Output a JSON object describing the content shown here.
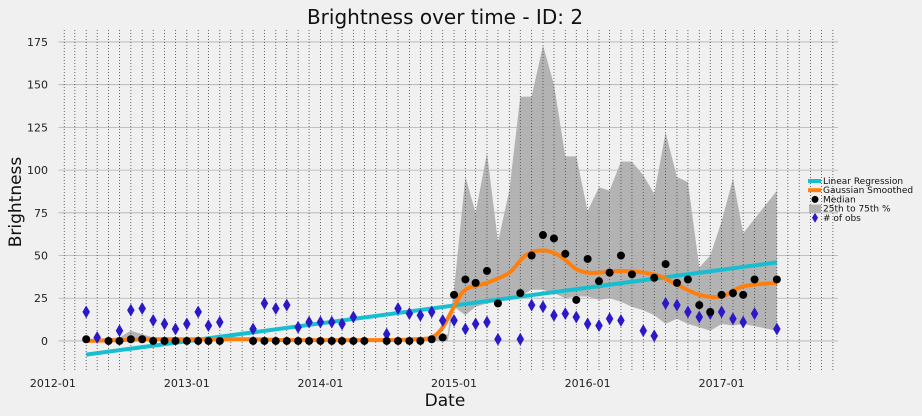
{
  "chart_data": {
    "type": "line",
    "title": "Brightness over time - ID: 2",
    "xlabel": "Date",
    "ylabel": "Brightness",
    "ylim": [
      -17,
      182
    ],
    "xlim": [
      "2012-01-15",
      "2017-11-15"
    ],
    "yticks": [
      0,
      25,
      50,
      75,
      100,
      125,
      150,
      175
    ],
    "xticks": [
      {
        "date": "2012-01-01",
        "label": "2012-01"
      },
      {
        "date": "2013-01-01",
        "label": "2013-01"
      },
      {
        "date": "2014-01-01",
        "label": "2014-01"
      },
      {
        "date": "2015-01-01",
        "label": "2015-01"
      },
      {
        "date": "2016-01-01",
        "label": "2016-01"
      },
      {
        "date": "2017-01-01",
        "label": "2017-01"
      }
    ],
    "grid": true,
    "legend": {
      "position": "right",
      "entries": [
        {
          "label": "Linear Regression",
          "kind": "line",
          "color": "#17becf"
        },
        {
          "label": "Gaussian Smoothed",
          "kind": "line",
          "color": "#ff7f0e"
        },
        {
          "label": "Median",
          "kind": "point",
          "color": "#000000"
        },
        {
          "label": "25th to 75th %",
          "kind": "band",
          "color": "#b3b3b3"
        },
        {
          "label": "# of obs",
          "kind": "diamond",
          "color": "#2a18c9"
        }
      ]
    },
    "colors": {
      "regression": "#17becf",
      "smoothed": "#ff7f0e",
      "median": "#000000",
      "band": "#b3b3b3",
      "obs": "#2a18c9",
      "background": "#f0f0f0",
      "grid": "#b0b0b0"
    },
    "linear_regression": {
      "x": [
        "2012-04-01",
        "2017-06-01"
      ],
      "y": [
        -8,
        46
      ]
    },
    "gaussian_smoothed": {
      "x": [
        "2012-04-01",
        "2012-07-01",
        "2012-10-01",
        "2013-01-01",
        "2013-04-01",
        "2013-07-01",
        "2013-10-01",
        "2014-01-01",
        "2014-04-01",
        "2014-07-01",
        "2014-09-15",
        "2014-11-01",
        "2014-12-01",
        "2015-01-01",
        "2015-02-01",
        "2015-04-01",
        "2015-06-01",
        "2015-07-15",
        "2015-09-01",
        "2015-10-15",
        "2015-12-01",
        "2016-01-01",
        "2016-02-01",
        "2016-04-01",
        "2016-06-01",
        "2016-07-15",
        "2016-09-01",
        "2016-11-01",
        "2017-01-01",
        "2017-03-01",
        "2017-06-01"
      ],
      "y": [
        0,
        0.5,
        1,
        1,
        1,
        1,
        0.5,
        0.5,
        0.5,
        0.5,
        1,
        2,
        8,
        20,
        30,
        34,
        40,
        50,
        53,
        50,
        42,
        40,
        40,
        41,
        40,
        38,
        33,
        27,
        26,
        32,
        34
      ]
    },
    "band": {
      "x": [
        "2012-04-01",
        "2012-07-01",
        "2012-08-01",
        "2012-10-01",
        "2013-01-01",
        "2013-06-01",
        "2014-01-01",
        "2014-06-01",
        "2014-09-01",
        "2014-11-01",
        "2014-12-15",
        "2015-01-01",
        "2015-02-01",
        "2015-03-01",
        "2015-04-01",
        "2015-05-01",
        "2015-06-01",
        "2015-07-01",
        "2015-08-01",
        "2015-09-01",
        "2015-10-01",
        "2015-11-01",
        "2015-12-01",
        "2016-01-01",
        "2016-02-01",
        "2016-03-01",
        "2016-04-01",
        "2016-05-01",
        "2016-06-01",
        "2016-07-01",
        "2016-08-01",
        "2016-09-01",
        "2016-10-01",
        "2016-11-01",
        "2016-12-01",
        "2017-01-01",
        "2017-02-01",
        "2017-03-01",
        "2017-06-01"
      ],
      "upper": [
        1,
        2,
        6,
        2,
        1,
        1,
        1,
        1,
        1,
        2,
        4,
        30,
        96,
        75,
        110,
        58,
        88,
        143,
        143,
        173,
        150,
        108,
        108,
        76,
        90,
        88,
        105,
        105,
        97,
        86,
        122,
        96,
        93,
        43,
        50,
        70,
        95,
        63,
        88
      ],
      "lower": [
        0,
        0,
        0,
        0,
        0,
        0,
        0,
        0,
        0,
        0,
        0,
        20,
        15,
        20,
        22,
        23,
        26,
        26,
        30,
        30,
        28,
        25,
        26,
        26,
        24,
        25,
        23,
        20,
        18,
        15,
        10,
        13,
        10,
        8,
        6,
        10,
        9,
        10,
        6
      ]
    },
    "median": {
      "x": [
        "2012-04-01",
        "2012-06-01",
        "2012-07-01",
        "2012-08-01",
        "2012-09-01",
        "2012-10-01",
        "2012-11-01",
        "2012-12-01",
        "2013-01-01",
        "2013-02-01",
        "2013-03-01",
        "2013-04-01",
        "2013-07-01",
        "2013-08-01",
        "2013-09-01",
        "2013-10-01",
        "2013-11-01",
        "2013-12-01",
        "2014-01-01",
        "2014-02-01",
        "2014-03-01",
        "2014-04-01",
        "2014-05-01",
        "2014-07-01",
        "2014-08-01",
        "2014-09-01",
        "2014-10-01",
        "2014-11-01",
        "2014-12-01",
        "2015-01-01",
        "2015-02-01",
        "2015-03-01",
        "2015-04-01",
        "2015-05-01",
        "2015-07-01",
        "2015-08-01",
        "2015-09-01",
        "2015-10-01",
        "2015-11-01",
        "2015-12-01",
        "2016-01-01",
        "2016-02-01",
        "2016-03-01",
        "2016-04-01",
        "2016-05-01",
        "2016-07-01",
        "2016-08-01",
        "2016-09-01",
        "2016-10-01",
        "2016-11-01",
        "2016-12-01",
        "2017-01-01",
        "2017-02-01",
        "2017-03-01",
        "2017-04-01",
        "2017-06-01"
      ],
      "y": [
        1,
        0,
        0,
        1,
        1,
        0,
        0,
        0,
        0,
        0,
        0,
        0,
        0,
        0,
        0,
        0,
        0,
        0,
        0,
        0,
        0,
        0,
        0,
        0,
        0,
        0,
        0,
        1,
        2,
        27,
        36,
        34,
        41,
        22,
        28,
        50,
        62,
        60,
        51,
        24,
        48,
        35,
        40,
        50,
        39,
        37,
        45,
        34,
        36,
        21,
        17,
        27,
        28,
        27,
        36,
        36
      ]
    },
    "obs": {
      "x": [
        "2012-04-01",
        "2012-05-01",
        "2012-07-01",
        "2012-08-01",
        "2012-09-01",
        "2012-10-01",
        "2012-11-01",
        "2012-12-01",
        "2013-01-01",
        "2013-02-01",
        "2013-03-01",
        "2013-04-01",
        "2013-07-01",
        "2013-08-01",
        "2013-09-01",
        "2013-10-01",
        "2013-11-01",
        "2013-12-01",
        "2014-01-01",
        "2014-02-01",
        "2014-03-01",
        "2014-04-01",
        "2014-07-01",
        "2014-08-01",
        "2014-09-01",
        "2014-10-01",
        "2014-11-01",
        "2014-12-01",
        "2015-01-01",
        "2015-02-01",
        "2015-03-01",
        "2015-04-01",
        "2015-05-01",
        "2015-07-01",
        "2015-08-01",
        "2015-09-01",
        "2015-10-01",
        "2015-11-01",
        "2015-12-01",
        "2016-01-01",
        "2016-02-01",
        "2016-03-01",
        "2016-04-01",
        "2016-06-01",
        "2016-07-01",
        "2016-08-01",
        "2016-09-01",
        "2016-10-01",
        "2016-11-01",
        "2016-12-01",
        "2017-01-01",
        "2017-02-01",
        "2017-03-01",
        "2017-04-01",
        "2017-06-01"
      ],
      "y": [
        17,
        2,
        6,
        18,
        19,
        12,
        10,
        7,
        10,
        17,
        9,
        11,
        7,
        22,
        19,
        21,
        8,
        11,
        11,
        11,
        10,
        14,
        4,
        19,
        16,
        15,
        17,
        12,
        12,
        7,
        10,
        11,
        1,
        1,
        21,
        20,
        15,
        16,
        14,
        10,
        9,
        13,
        12,
        6,
        3,
        22,
        21,
        17,
        14,
        16,
        17,
        13,
        11,
        16,
        7
      ]
    }
  }
}
